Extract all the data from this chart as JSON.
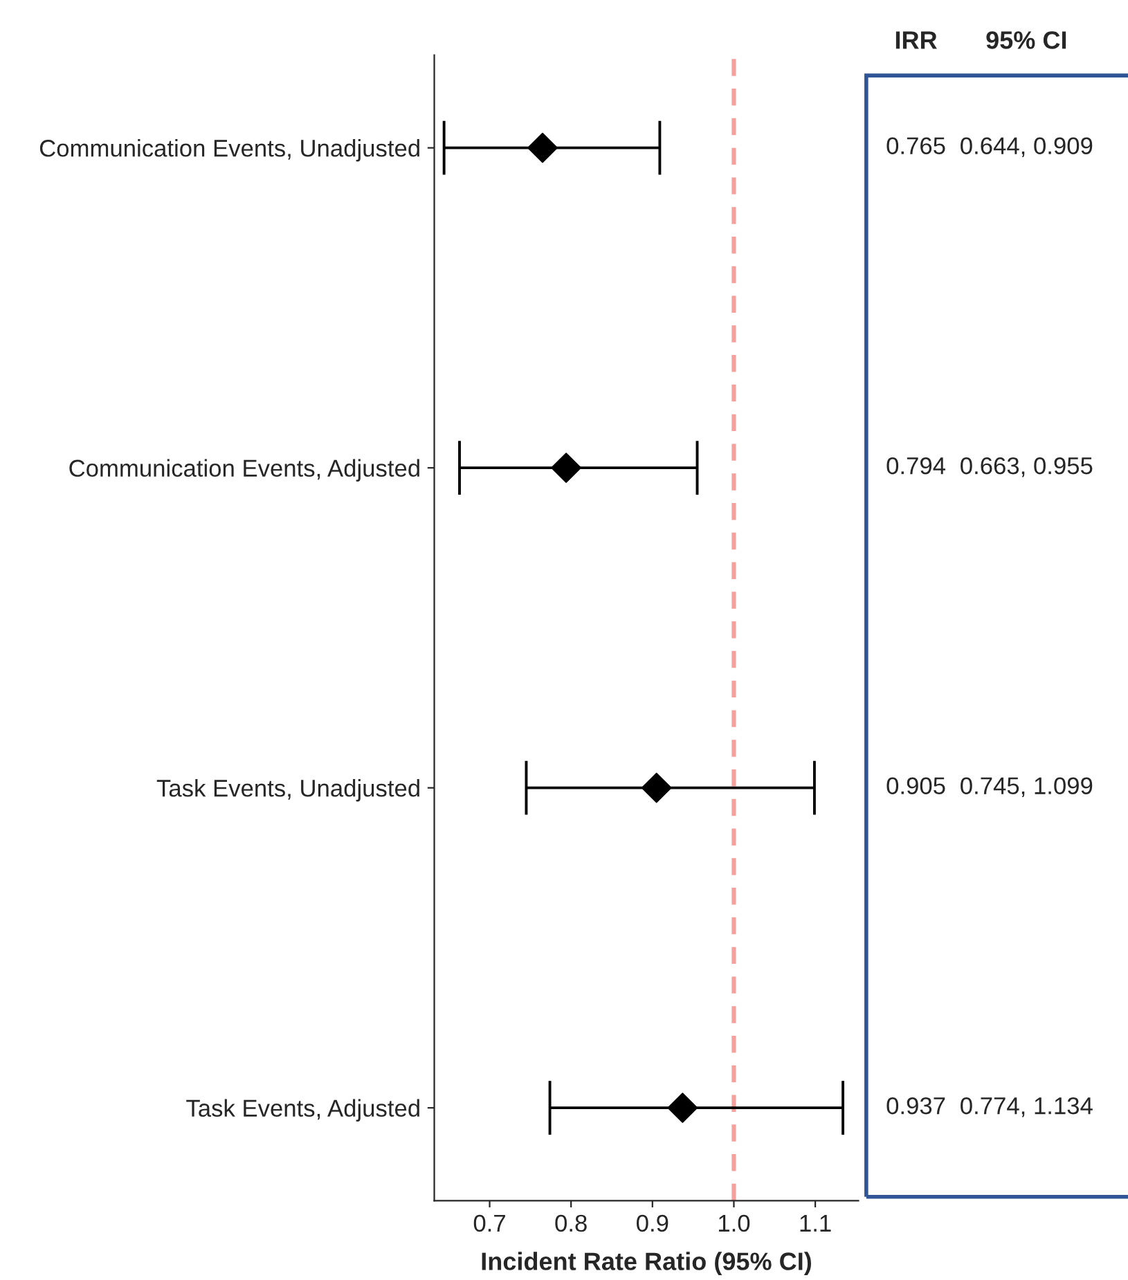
{
  "chart_data": {
    "type": "scatter",
    "orientation": "horizontal",
    "xlabel": "Incident Rate Ratio (95% CI)",
    "categories": [
      "Communication Events, Unadjusted",
      "Communication Events, Adjusted",
      "Task Events, Unadjusted",
      "Task Events, Adjusted"
    ],
    "series": [
      {
        "color": "#000000",
        "values": [
          0.765,
          0.794,
          0.905,
          0.937
        ],
        "errors": [
          [
            0.644,
            0.909
          ],
          [
            0.663,
            0.955
          ],
          [
            0.745,
            1.099
          ],
          [
            0.774,
            1.134
          ]
        ],
        "value_labels": [
          "0.765",
          "0.794",
          "0.905",
          "0.937"
        ]
      }
    ],
    "marker": "diamond",
    "xlim": [
      0.632,
      1.153
    ],
    "xticks": [
      0.7,
      0.8,
      0.9,
      "1.0",
      1.1
    ],
    "ref_lines": [
      {
        "axis": "x",
        "value": 1.0,
        "color": "#f4a09c",
        "line_style": "dashed"
      }
    ],
    "annotations": [
      "IRR",
      "95% CI",
      "0.644, 0.909",
      "0.663, 0.955",
      "0.745, 1.099",
      "0.774, 1.134"
    ],
    "grid": false,
    "legend": false
  }
}
